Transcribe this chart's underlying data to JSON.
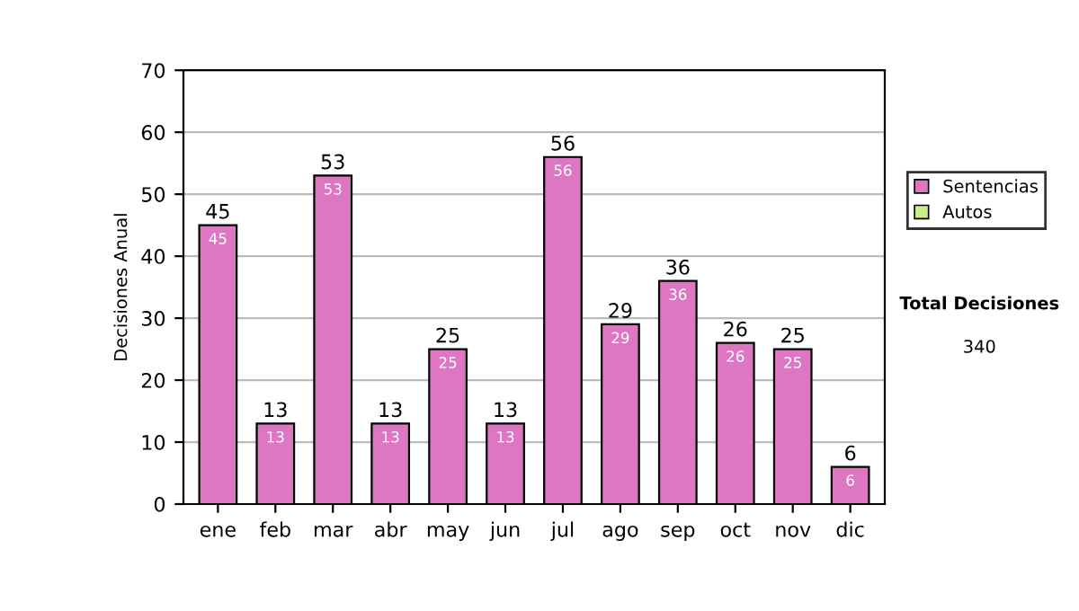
{
  "chart_data": {
    "type": "bar",
    "stacked": true,
    "ylabel": "Decisiones Anual",
    "categories": [
      "ene",
      "feb",
      "mar",
      "abr",
      "may",
      "jun",
      "jul",
      "ago",
      "sep",
      "oct",
      "nov",
      "dic"
    ],
    "series": [
      {
        "name": "Sentencias",
        "color": "#dd77c4",
        "values": [
          45,
          13,
          53,
          13,
          25,
          13,
          56,
          29,
          36,
          26,
          25,
          6
        ],
        "value_labels": [
          "45",
          "13",
          "53",
          "13",
          "25",
          "13",
          "56",
          "29",
          "36",
          "26",
          "25",
          "6"
        ]
      },
      {
        "name": "Autos",
        "color": "#ccee88",
        "values": [
          null,
          null,
          null,
          null,
          null,
          null,
          null,
          null,
          null,
          null,
          null,
          null
        ]
      }
    ],
    "totals": [
      "45",
      "13",
      "53",
      "13",
      "25",
      "13",
      "56",
      "29",
      "36",
      "26",
      "25",
      "6"
    ],
    "ylim": [
      0,
      70
    ],
    "yticks": [
      0,
      10,
      20,
      30,
      40,
      50,
      60,
      70
    ],
    "grid": "y",
    "legend": "right",
    "annotations": [
      "Total Decisiones",
      "340"
    ]
  }
}
